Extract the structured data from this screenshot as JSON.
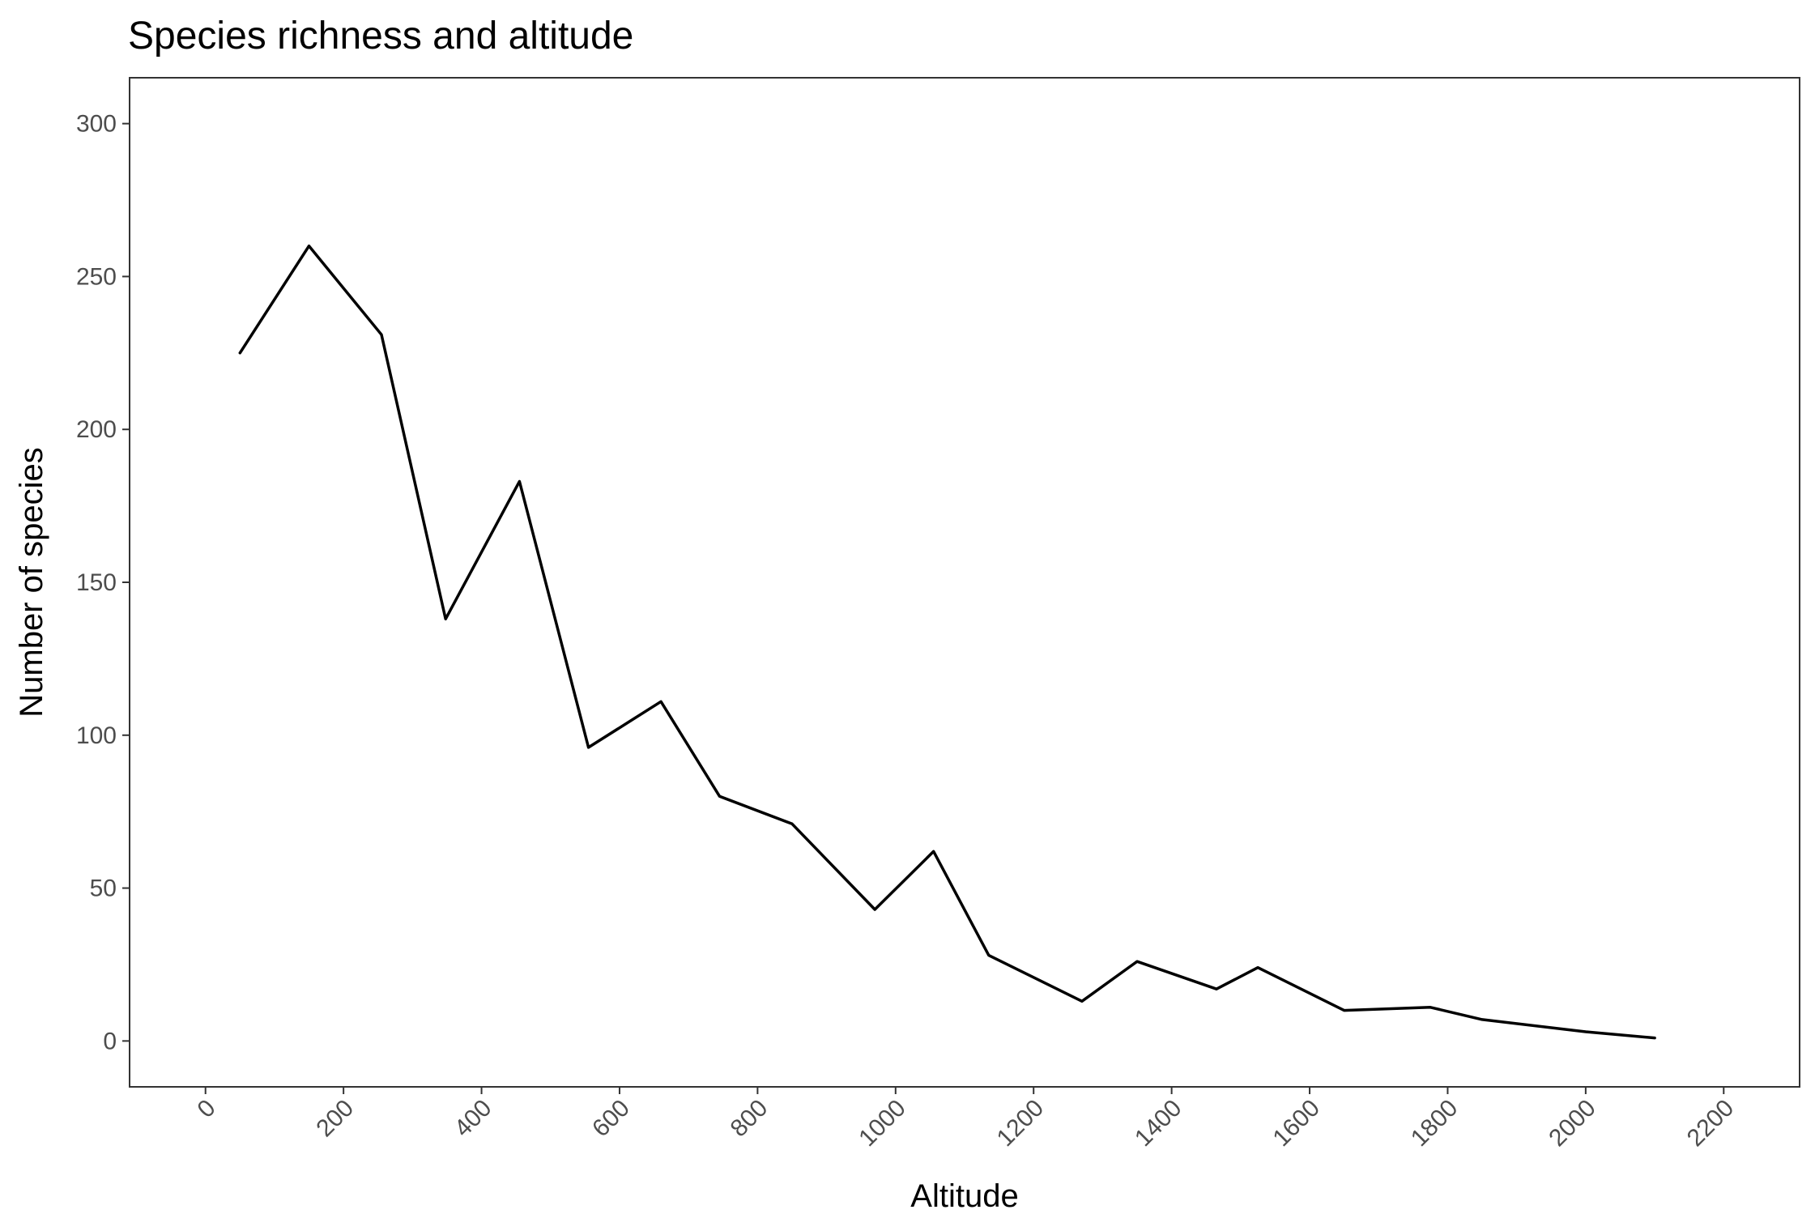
{
  "chart_data": {
    "type": "line",
    "title": "Species richness and altitude",
    "xlabel": "Altitude",
    "ylabel": "Number of species",
    "xlim": [
      -110,
      2310
    ],
    "ylim": [
      -15,
      315
    ],
    "xticks": [
      0,
      200,
      400,
      600,
      800,
      1000,
      1200,
      1400,
      1600,
      1800,
      2000,
      2200
    ],
    "yticks": [
      0,
      50,
      100,
      150,
      200,
      250,
      300
    ],
    "grid": false,
    "legend": "none",
    "colors": {
      "line": "#000000",
      "panel_border": "#333333",
      "tick_text": "#4d4d4d"
    },
    "series": [
      {
        "x": [
          50,
          150,
          255,
          348,
          455,
          555,
          660,
          745,
          850,
          970,
          1055,
          1135,
          1270,
          1350,
          1465,
          1525,
          1650,
          1775,
          1850,
          2000,
          2100
        ],
        "y": [
          225,
          260,
          231,
          138,
          183,
          96,
          111,
          80,
          71,
          43,
          62,
          28,
          13,
          26,
          17,
          24,
          10,
          11,
          7,
          3,
          1
        ]
      }
    ]
  }
}
